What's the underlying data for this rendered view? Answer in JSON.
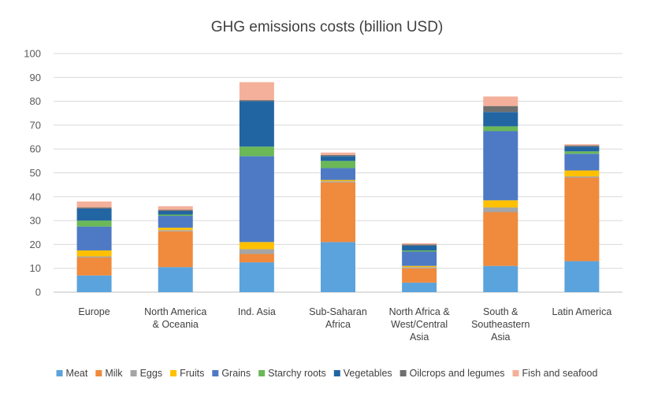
{
  "chart_data": {
    "type": "bar",
    "stacked": true,
    "title": "GHG emissions costs (billion USD)",
    "xlabel": "",
    "ylabel": "",
    "ylim": [
      0,
      100
    ],
    "yticks": [
      0,
      10,
      20,
      30,
      40,
      50,
      60,
      70,
      80,
      90,
      100
    ],
    "grid": true,
    "legend_position": "bottom",
    "categories": [
      "Europe",
      "North America & Oceania",
      "Ind. Asia",
      "Sub-Saharan Africa",
      "North Africa & West/Central Asia",
      "South & Southeastern Asia",
      "Latin America"
    ],
    "category_lines": [
      [
        "Europe"
      ],
      [
        "North America",
        "& Oceania"
      ],
      [
        "Ind. Asia"
      ],
      [
        "Sub-Saharan",
        "Africa"
      ],
      [
        "North Africa &",
        "West/Central",
        "Asia"
      ],
      [
        "South &",
        "Southeastern",
        "Asia"
      ],
      [
        "Latin America"
      ]
    ],
    "series": [
      {
        "name": "Meat",
        "color": "#5ba3dc",
        "values": [
          7,
          10.5,
          12.5,
          21,
          4,
          11,
          13
        ]
      },
      {
        "name": "Milk",
        "color": "#f08a3c",
        "values": [
          7.5,
          15,
          3.5,
          25,
          6,
          22.5,
          35
        ]
      },
      {
        "name": "Eggs",
        "color": "#a5a5a5",
        "values": [
          0.5,
          0.5,
          2,
          0.5,
          0.5,
          2,
          0.5
        ]
      },
      {
        "name": "Fruits",
        "color": "#ffc000",
        "values": [
          2.5,
          1,
          3,
          0.5,
          0.5,
          3,
          2.5
        ]
      },
      {
        "name": "Grains",
        "color": "#4e79c4",
        "values": [
          10,
          5,
          36,
          5,
          6,
          29,
          7
        ]
      },
      {
        "name": "Starchy roots",
        "color": "#6ab858",
        "values": [
          2.5,
          0.5,
          4,
          3,
          0.5,
          2,
          1
        ]
      },
      {
        "name": "Vegetables",
        "color": "#2265a3",
        "values": [
          5,
          1.5,
          19,
          2,
          2,
          6,
          2
        ]
      },
      {
        "name": "Oilcrops and legumes",
        "color": "#6f6f6f",
        "values": [
          0.5,
          0.5,
          0.5,
          0.5,
          0.5,
          2.5,
          0.5
        ]
      },
      {
        "name": "Fish and seafood",
        "color": "#f4b09a",
        "values": [
          2.5,
          1.5,
          7.5,
          1,
          0.5,
          4,
          0.5
        ]
      }
    ]
  }
}
